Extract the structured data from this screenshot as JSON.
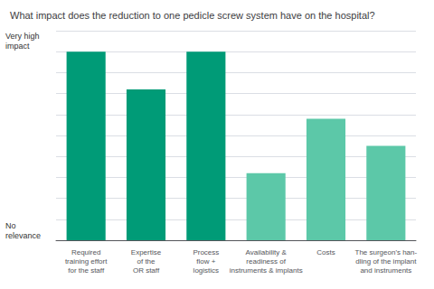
{
  "chart_data": {
    "type": "bar",
    "title": "What impact does the reduction to one pedicle screw system have on the hospital?",
    "categories": [
      "Required\ntraining effort\nfor the staff",
      "Expertise\nof the\nOR staff",
      "Process\nflow +\nlogistics",
      "Availability &\nreadiness of\ninstruments & implants",
      "Costs",
      "The surgeon's han-\ndling of the implant\nand instruments"
    ],
    "values": [
      9.0,
      7.2,
      9.0,
      3.2,
      5.8,
      4.5
    ],
    "colors": [
      "#009B77",
      "#009B77",
      "#009B77",
      "#5CC8A8",
      "#5CC8A8",
      "#5CC8A8"
    ],
    "ylim": [
      0,
      10
    ],
    "yticks": [
      0,
      1,
      2,
      3,
      4,
      5,
      6,
      7,
      8,
      9,
      10
    ],
    "grid": true,
    "tick_labels": "x",
    "annotations": [
      {
        "text": "Very high\nimpact",
        "y": 10
      },
      {
        "text": "No\nrelevance",
        "y": 0
      }
    ]
  }
}
